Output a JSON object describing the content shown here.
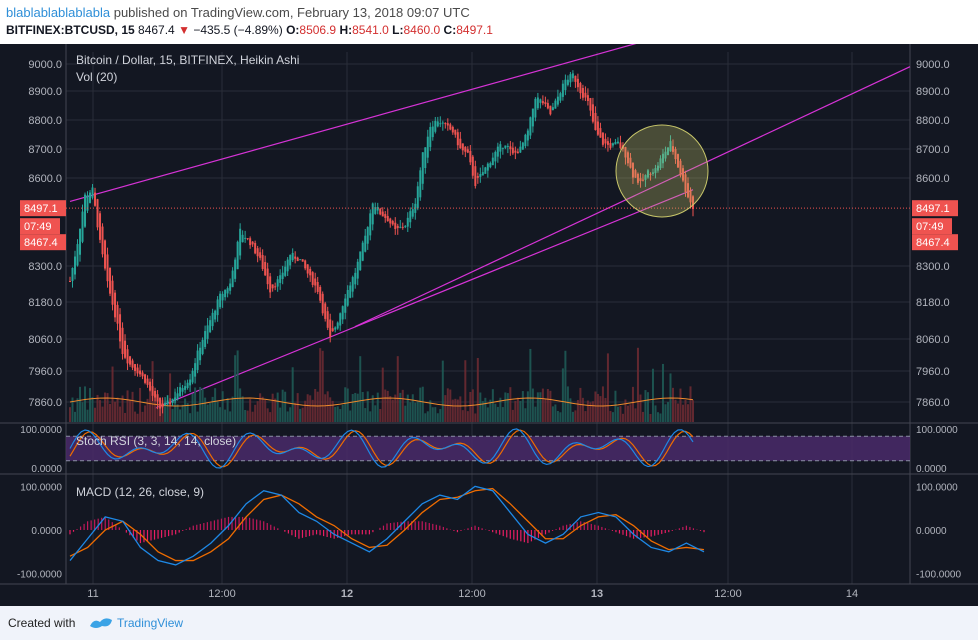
{
  "header": {
    "author": "blablablablablabla",
    "published": "published on TradingView.com, February 13, 2018 09:07 UTC",
    "symbol": "BITFINEX:BTCUSD, 15",
    "last": "8467.4",
    "change": "−435.5 (−4.89%)",
    "o_label": "O:",
    "o_value": "8506.9",
    "h_label": "H:",
    "h_value": "8541.0",
    "l_label": "L:",
    "l_value": "8460.0",
    "c_label": "C:",
    "c_value": "8497.1"
  },
  "footer": {
    "created_with": "Created with",
    "brand": "TradingView"
  },
  "colors": {
    "background": "#131722",
    "up": "#26a69a",
    "down": "#ef5350",
    "channel": "#d633d6",
    "stoch_k": "#1e88e5",
    "stoch_d": "#ef6c00",
    "stoch_band": "#4a2a6a",
    "macd_line": "#1e88e5",
    "signal_line": "#ef6c00",
    "hist_pos": "#26a69a",
    "hist_neg": "#e91e63",
    "price_line": "#ef5350",
    "circle": "#c8c66a"
  },
  "chart_data": {
    "type": "candlestick",
    "title": "Bitcoin / Dollar, 15, BITFINEX, Heikin Ashi",
    "volume_label": "Vol (20)",
    "x_ticks": [
      "11",
      "12:00",
      "12",
      "12:00",
      "13",
      "12:00",
      "14"
    ],
    "price_ticks": [
      9000,
      8900,
      8800,
      8700,
      8600,
      8300,
      8180,
      8060,
      7960,
      7860
    ],
    "price_axis_labels": [
      "9000.0",
      "8900.0",
      "8800.0",
      "8700.0",
      "8600.0",
      "8300.0",
      "8180.0",
      "8060.0",
      "7960.0",
      "7860.0"
    ],
    "price_markers": {
      "last": "8497.1",
      "countdown": "07:49",
      "low": "8467.4"
    },
    "price_path": [
      [
        0,
        8250
      ],
      [
        3,
        8380
      ],
      [
        6,
        8540
      ],
      [
        9,
        8560
      ],
      [
        12,
        8380
      ],
      [
        15,
        8240
      ],
      [
        18,
        8140
      ],
      [
        21,
        8020
      ],
      [
        24,
        7980
      ],
      [
        27,
        7960
      ],
      [
        30,
        7930
      ],
      [
        33,
        7880
      ],
      [
        36,
        7840
      ],
      [
        40,
        7860
      ],
      [
        44,
        7900
      ],
      [
        48,
        7940
      ],
      [
        52,
        8040
      ],
      [
        56,
        8120
      ],
      [
        60,
        8200
      ],
      [
        64,
        8240
      ],
      [
        68,
        8420
      ],
      [
        72,
        8380
      ],
      [
        76,
        8320
      ],
      [
        80,
        8220
      ],
      [
        84,
        8260
      ],
      [
        88,
        8340
      ],
      [
        92,
        8320
      ],
      [
        96,
        8260
      ],
      [
        99,
        8220
      ],
      [
        102,
        8120
      ],
      [
        104,
        8060
      ],
      [
        107,
        8120
      ],
      [
        110,
        8200
      ],
      [
        114,
        8280
      ],
      [
        118,
        8400
      ],
      [
        121,
        8520
      ],
      [
        124,
        8480
      ],
      [
        127,
        8460
      ],
      [
        130,
        8420
      ],
      [
        134,
        8440
      ],
      [
        138,
        8520
      ],
      [
        141,
        8680
      ],
      [
        144,
        8780
      ],
      [
        147,
        8800
      ],
      [
        150,
        8780
      ],
      [
        153,
        8760
      ],
      [
        156,
        8700
      ],
      [
        159,
        8680
      ],
      [
        162,
        8580
      ],
      [
        165,
        8620
      ],
      [
        168,
        8660
      ],
      [
        171,
        8700
      ],
      [
        174,
        8720
      ],
      [
        177,
        8680
      ],
      [
        180,
        8700
      ],
      [
        183,
        8760
      ],
      [
        186,
        8880
      ],
      [
        189,
        8860
      ],
      [
        192,
        8820
      ],
      [
        195,
        8880
      ],
      [
        198,
        8940
      ],
      [
        201,
        8960
      ],
      [
        204,
        8900
      ],
      [
        207,
        8860
      ],
      [
        210,
        8760
      ],
      [
        213,
        8720
      ],
      [
        216,
        8710
      ],
      [
        219,
        8720
      ],
      [
        222,
        8680
      ],
      [
        225,
        8610
      ],
      [
        228,
        8580
      ],
      [
        231,
        8620
      ],
      [
        234,
        8630
      ],
      [
        237,
        8680
      ],
      [
        240,
        8720
      ],
      [
        243,
        8640
      ],
      [
        246,
        8560
      ],
      [
        249,
        8497
      ]
    ],
    "channel_upper": [
      [
        0,
        8520
      ],
      [
        249,
        9130
      ]
    ],
    "channel_lower": [
      [
        34,
        7840
      ],
      [
        249,
        8560
      ]
    ],
    "channel_parallel_right": [
      [
        68,
        7840
      ],
      [
        340,
        8920
      ]
    ],
    "stoch_rsi": {
      "label": "Stoch RSI (3, 3, 14, 14, close)",
      "axis_labels": [
        "100.0000",
        "0.0000"
      ],
      "ylim": [
        0,
        100
      ],
      "band": [
        20,
        80
      ]
    },
    "macd": {
      "label": "MACD (12, 26, close, 9)",
      "axis_labels": [
        "100.0000",
        "0.0000",
        "-100.0000"
      ],
      "ylim": [
        -110,
        110
      ],
      "macd_line": [
        [
          0,
          -70
        ],
        [
          10,
          -20
        ],
        [
          20,
          30
        ],
        [
          30,
          20
        ],
        [
          40,
          -40
        ],
        [
          50,
          -70
        ],
        [
          60,
          -80
        ],
        [
          70,
          -60
        ],
        [
          80,
          -30
        ],
        [
          90,
          10
        ],
        [
          100,
          60
        ],
        [
          110,
          90
        ],
        [
          120,
          80
        ],
        [
          130,
          40
        ],
        [
          140,
          20
        ],
        [
          150,
          -10
        ],
        [
          160,
          -30
        ],
        [
          170,
          -50
        ],
        [
          180,
          -20
        ],
        [
          190,
          20
        ],
        [
          200,
          60
        ],
        [
          210,
          80
        ],
        [
          220,
          70
        ],
        [
          230,
          100
        ],
        [
          240,
          90
        ],
        [
          250,
          40
        ],
        [
          260,
          -10
        ],
        [
          270,
          -30
        ],
        [
          280,
          -10
        ],
        [
          290,
          30
        ],
        [
          300,
          40
        ],
        [
          310,
          30
        ],
        [
          320,
          -10
        ],
        [
          330,
          -40
        ],
        [
          340,
          -50
        ],
        [
          350,
          -30
        ],
        [
          360,
          -50
        ]
      ],
      "signal_line": [
        [
          0,
          -60
        ],
        [
          10,
          -40
        ],
        [
          20,
          0
        ],
        [
          30,
          20
        ],
        [
          40,
          -10
        ],
        [
          50,
          -50
        ],
        [
          60,
          -70
        ],
        [
          70,
          -70
        ],
        [
          80,
          -50
        ],
        [
          90,
          -20
        ],
        [
          100,
          30
        ],
        [
          110,
          70
        ],
        [
          120,
          80
        ],
        [
          130,
          60
        ],
        [
          140,
          30
        ],
        [
          150,
          10
        ],
        [
          160,
          -20
        ],
        [
          170,
          -40
        ],
        [
          180,
          -35
        ],
        [
          190,
          0
        ],
        [
          200,
          40
        ],
        [
          210,
          70
        ],
        [
          220,
          75
        ],
        [
          230,
          90
        ],
        [
          240,
          95
        ],
        [
          250,
          60
        ],
        [
          260,
          20
        ],
        [
          270,
          -20
        ],
        [
          280,
          -20
        ],
        [
          290,
          10
        ],
        [
          300,
          30
        ],
        [
          310,
          35
        ],
        [
          320,
          10
        ],
        [
          330,
          -25
        ],
        [
          340,
          -45
        ],
        [
          350,
          -40
        ],
        [
          360,
          -45
        ]
      ]
    },
    "x_range": [
      0,
      340
    ],
    "grid": true
  }
}
